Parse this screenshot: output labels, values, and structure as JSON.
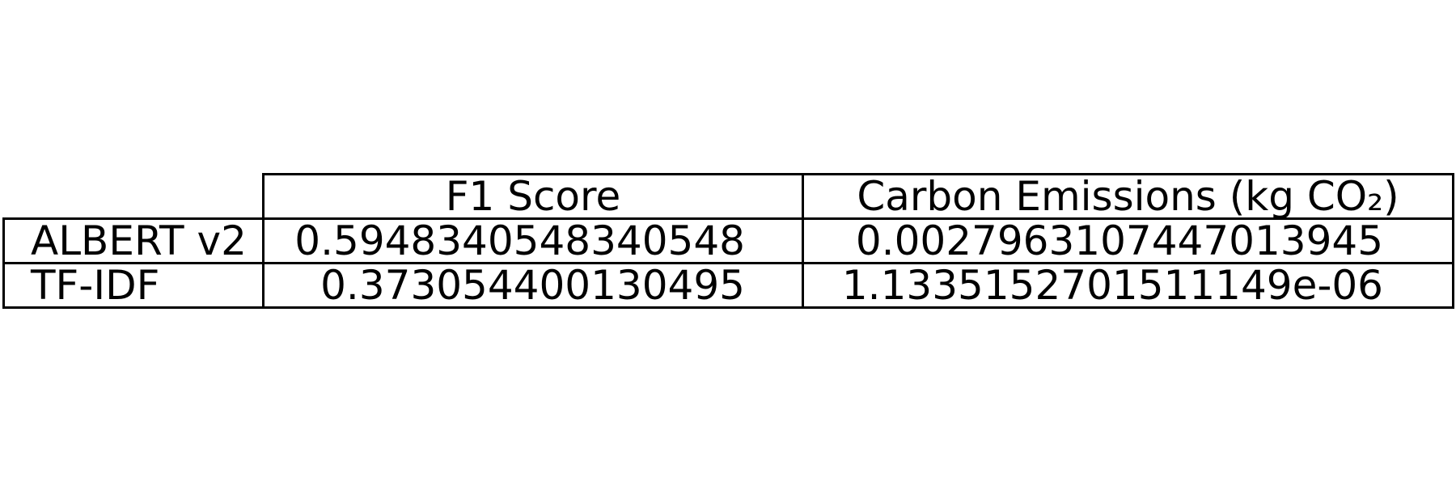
{
  "chart_data": {
    "type": "table",
    "columns": [
      "",
      "F1 Score",
      "Carbon Emissions (kg CO₂)"
    ],
    "rows": [
      {
        "label": "ALBERT v2",
        "values": [
          "0.5948340548340548",
          "0.0027963107447013945"
        ]
      },
      {
        "label": "TF-IDF",
        "values": [
          "0.373054400130495",
          "1.1335152701511149e-06"
        ]
      }
    ]
  }
}
